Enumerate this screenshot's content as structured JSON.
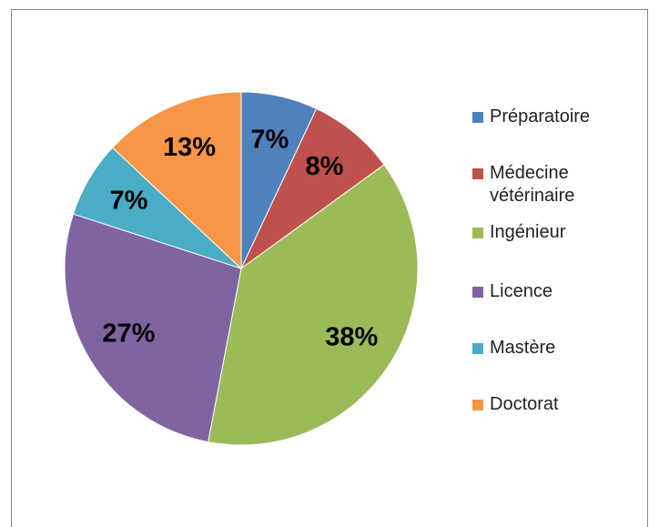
{
  "chart_data": {
    "type": "pie",
    "categories": [
      "Préparatoire",
      "Médecine vétérinaire",
      "Ingénieur",
      "Licence",
      "Mastère",
      "Doctorat"
    ],
    "values": [
      7,
      8,
      38,
      27,
      7,
      13
    ],
    "value_labels": [
      "7%",
      "8%",
      "38%",
      "27%",
      "7%",
      "13%"
    ],
    "colors": [
      "#4f81bd",
      "#c0504d",
      "#9bbb59",
      "#8064a2",
      "#4bacc6",
      "#f79646"
    ],
    "legend": "right"
  }
}
